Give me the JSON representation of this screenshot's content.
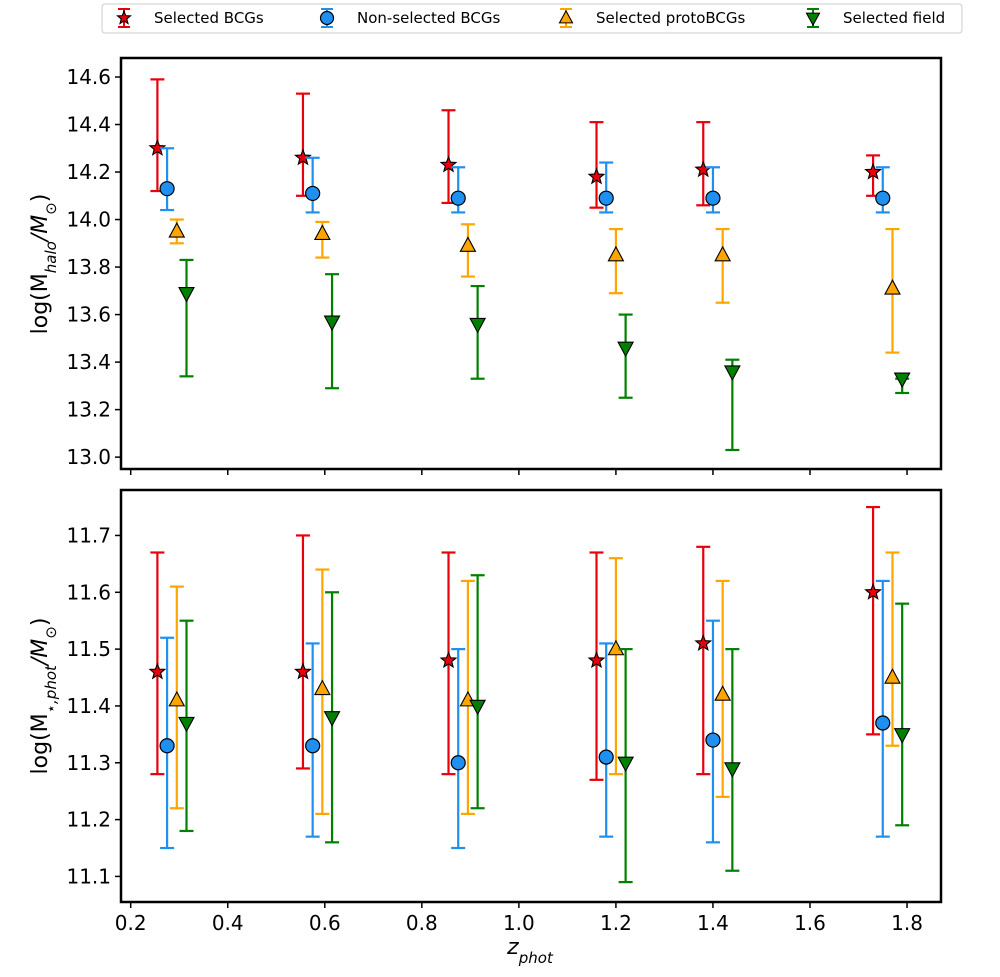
{
  "legend": {
    "entries": [
      {
        "label": "Selected BCGs",
        "marker": "star",
        "color": "#e8000b"
      },
      {
        "label": "Non-selected BCGs",
        "marker": "circle",
        "color": "#1f8ff0"
      },
      {
        "label": "Selected protoBCGs",
        "marker": "triangle-up",
        "color": "#ffa500"
      },
      {
        "label": "Selected field",
        "marker": "triangle-down",
        "color": "#008000"
      }
    ]
  },
  "chart_data": [
    {
      "type": "scatter",
      "title": "",
      "ylabel_main": "log(M",
      "ylabel_sub": "halo",
      "ylabel_mid": "/M",
      "ylabel_sub2": "⊙",
      "ylabel_end": ")",
      "xlim": [
        0.18,
        1.87
      ],
      "ylim": [
        12.95,
        14.68
      ],
      "xticks": [
        0.2,
        0.4,
        0.6,
        0.8,
        1.0,
        1.2,
        1.4,
        1.6,
        1.8
      ],
      "yticks": [
        13.0,
        13.2,
        13.4,
        13.6,
        13.8,
        14.0,
        14.2,
        14.4,
        14.6
      ],
      "ytick_labels": [
        "13.0",
        "13.2",
        "13.4",
        "13.6",
        "13.8",
        "14.0",
        "14.2",
        "14.4",
        "14.6"
      ],
      "series": [
        {
          "name": "Selected BCGs",
          "marker": "star",
          "color": "#e8000b",
          "x": [
            0.255,
            0.555,
            0.855,
            1.16,
            1.38,
            1.73
          ],
          "y": [
            14.3,
            14.26,
            14.23,
            14.18,
            14.21,
            14.2
          ],
          "ylow": [
            14.12,
            14.1,
            14.07,
            14.05,
            14.06,
            14.1
          ],
          "yhigh": [
            14.59,
            14.53,
            14.46,
            14.41,
            14.41,
            14.27
          ]
        },
        {
          "name": "Non-selected BCGs",
          "marker": "circle",
          "color": "#1f8ff0",
          "x": [
            0.275,
            0.575,
            0.875,
            1.18,
            1.4,
            1.75
          ],
          "y": [
            14.13,
            14.11,
            14.09,
            14.09,
            14.09,
            14.09
          ],
          "ylow": [
            14.04,
            14.03,
            14.03,
            14.03,
            14.03,
            14.03
          ],
          "yhigh": [
            14.3,
            14.26,
            14.22,
            14.24,
            14.22,
            14.22
          ]
        },
        {
          "name": "Selected protoBCGs",
          "marker": "triangle-up",
          "color": "#ffa500",
          "x": [
            0.295,
            0.595,
            0.895,
            1.2,
            1.42,
            1.77
          ],
          "y": [
            13.95,
            13.94,
            13.89,
            13.85,
            13.85,
            13.71
          ],
          "ylow": [
            13.9,
            13.84,
            13.76,
            13.69,
            13.65,
            13.44
          ],
          "yhigh": [
            14.0,
            13.99,
            13.98,
            13.96,
            13.96,
            13.96
          ]
        },
        {
          "name": "Selected field",
          "marker": "triangle-down",
          "color": "#008000",
          "x": [
            0.315,
            0.615,
            0.915,
            1.22,
            1.44,
            1.79
          ],
          "y": [
            13.69,
            13.57,
            13.56,
            13.46,
            13.36,
            13.33
          ],
          "ylow": [
            13.34,
            13.29,
            13.33,
            13.25,
            13.03,
            13.27
          ],
          "yhigh": [
            13.83,
            13.77,
            13.72,
            13.6,
            13.41,
            13.33
          ]
        }
      ]
    },
    {
      "type": "scatter",
      "title": "",
      "xlabel_main": "z",
      "xlabel_sub": "phot",
      "ylabel_main": "log(M",
      "ylabel_sub": "⋆,phot",
      "ylabel_mid": "/M",
      "ylabel_sub2": "⊙",
      "ylabel_end": ")",
      "xlim": [
        0.18,
        1.87
      ],
      "ylim": [
        11.055,
        11.78
      ],
      "xticks": [
        0.2,
        0.4,
        0.6,
        0.8,
        1.0,
        1.2,
        1.4,
        1.6,
        1.8
      ],
      "xtick_labels": [
        "0.2",
        "0.4",
        "0.6",
        "0.8",
        "1.0",
        "1.2",
        "1.4",
        "1.6",
        "1.8"
      ],
      "yticks": [
        11.1,
        11.2,
        11.3,
        11.4,
        11.5,
        11.6,
        11.7
      ],
      "ytick_labels": [
        "11.1",
        "11.2",
        "11.3",
        "11.4",
        "11.5",
        "11.6",
        "11.7"
      ],
      "series": [
        {
          "name": "Selected BCGs",
          "marker": "star",
          "color": "#e8000b",
          "x": [
            0.255,
            0.555,
            0.855,
            1.16,
            1.38,
            1.73
          ],
          "y": [
            11.46,
            11.46,
            11.48,
            11.48,
            11.51,
            11.6
          ],
          "ylow": [
            11.28,
            11.29,
            11.28,
            11.27,
            11.28,
            11.35
          ],
          "yhigh": [
            11.67,
            11.7,
            11.67,
            11.67,
            11.68,
            11.75
          ]
        },
        {
          "name": "Non-selected BCGs",
          "marker": "circle",
          "color": "#1f8ff0",
          "x": [
            0.275,
            0.575,
            0.875,
            1.18,
            1.4,
            1.75
          ],
          "y": [
            11.33,
            11.33,
            11.3,
            11.31,
            11.34,
            11.37
          ],
          "ylow": [
            11.15,
            11.17,
            11.15,
            11.17,
            11.16,
            11.17
          ],
          "yhigh": [
            11.52,
            11.51,
            11.5,
            11.51,
            11.55,
            11.62
          ]
        },
        {
          "name": "Selected protoBCGs",
          "marker": "triangle-up",
          "color": "#ffa500",
          "x": [
            0.295,
            0.595,
            0.895,
            1.2,
            1.42,
            1.77
          ],
          "y": [
            11.41,
            11.43,
            11.41,
            11.5,
            11.42,
            11.45
          ],
          "ylow": [
            11.22,
            11.21,
            11.21,
            11.28,
            11.24,
            11.33
          ],
          "yhigh": [
            11.61,
            11.64,
            11.62,
            11.66,
            11.62,
            11.67
          ]
        },
        {
          "name": "Selected field",
          "marker": "triangle-down",
          "color": "#008000",
          "x": [
            0.315,
            0.615,
            0.915,
            1.22,
            1.44,
            1.79
          ],
          "y": [
            11.37,
            11.38,
            11.4,
            11.3,
            11.29,
            11.35
          ],
          "ylow": [
            11.18,
            11.16,
            11.22,
            11.09,
            11.11,
            11.19
          ],
          "yhigh": [
            11.55,
            11.6,
            11.63,
            11.5,
            11.5,
            11.58
          ]
        }
      ]
    }
  ]
}
